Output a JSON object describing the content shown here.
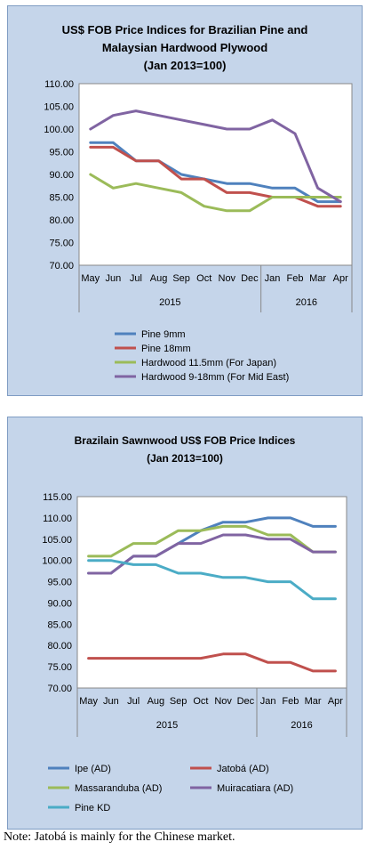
{
  "note": "Note: Jatobá is mainly for the Chinese market.",
  "chart_data": [
    {
      "type": "line",
      "title_lines": [
        "US$ FOB Price Indices for Brazilian Pine and",
        "Malaysian Hardwood Plywood",
        "(Jan 2013=100)"
      ],
      "categories": [
        "May",
        "Jun",
        "Jul",
        "Aug",
        "Sep",
        "Oct",
        "Nov",
        "Dec",
        "Jan",
        "Feb",
        "Mar",
        "Apr"
      ],
      "year_groups": [
        {
          "label": "2015",
          "from": 0,
          "to": 7
        },
        {
          "label": "2016",
          "from": 8,
          "to": 11
        }
      ],
      "ylim": [
        70,
        110
      ],
      "yticks": [
        "110.00",
        "105.00",
        "100.00",
        "95.00",
        "90.00",
        "85.00",
        "80.00",
        "75.00",
        "70.00"
      ],
      "legend_position": "below",
      "grid": false,
      "series": [
        {
          "name": "Pine 9mm",
          "color": "#4f81bd",
          "values": [
            97,
            97,
            93,
            93,
            90,
            89,
            88,
            88,
            87,
            87,
            84,
            84
          ]
        },
        {
          "name": "Pine 18mm",
          "color": "#c0504d",
          "values": [
            96,
            96,
            93,
            93,
            89,
            89,
            86,
            86,
            85,
            85,
            83,
            83
          ]
        },
        {
          "name": "Hardwood 11.5mm (For Japan)",
          "color": "#9bbb59",
          "values": [
            90,
            87,
            88,
            87,
            86,
            83,
            82,
            82,
            85,
            85,
            85,
            85
          ]
        },
        {
          "name": "Hardwood 9-18mm (For Mid East)",
          "color": "#8064a2",
          "values": [
            100,
            103,
            104,
            103,
            102,
            101,
            100,
            100,
            102,
            99,
            87,
            84
          ]
        }
      ]
    },
    {
      "type": "line",
      "title_lines": [
        "Brazilain Sawnwood US$ FOB Price Indices",
        "(Jan 2013=100)"
      ],
      "categories": [
        "May",
        "Jun",
        "Jul",
        "Aug",
        "Sep",
        "Oct",
        "Nov",
        "Dec",
        "Jan",
        "Feb",
        "Mar",
        "Apr"
      ],
      "year_groups": [
        {
          "label": "2015",
          "from": 0,
          "to": 7
        },
        {
          "label": "2016",
          "from": 8,
          "to": 11
        }
      ],
      "ylim": [
        70,
        115
      ],
      "yticks": [
        "115.00",
        "110.00",
        "105.00",
        "100.00",
        "95.00",
        "90.00",
        "85.00",
        "80.00",
        "75.00",
        "70.00"
      ],
      "legend_position": "below",
      "grid": false,
      "series": [
        {
          "name": "Ipe (AD)",
          "color": "#4f81bd",
          "values": [
            97,
            97,
            101,
            101,
            104,
            107,
            109,
            109,
            110,
            110,
            108,
            108
          ]
        },
        {
          "name": "Jatobá (AD)",
          "color": "#c0504d",
          "values": [
            77,
            77,
            77,
            77,
            77,
            77,
            78,
            78,
            76,
            76,
            74,
            74
          ]
        },
        {
          "name": "Massaranduba (AD)",
          "color": "#9bbb59",
          "values": [
            101,
            101,
            104,
            104,
            107,
            107,
            108,
            108,
            106,
            106,
            102,
            102
          ]
        },
        {
          "name": "Muiracatiara (AD)",
          "color": "#8064a2",
          "values": [
            97,
            97,
            101,
            101,
            104,
            104,
            106,
            106,
            105,
            105,
            102,
            102
          ]
        },
        {
          "name": "Pine KD",
          "color": "#4bacc6",
          "values": [
            100,
            100,
            99,
            99,
            97,
            97,
            96,
            96,
            95,
            95,
            91,
            91
          ]
        }
      ]
    }
  ]
}
